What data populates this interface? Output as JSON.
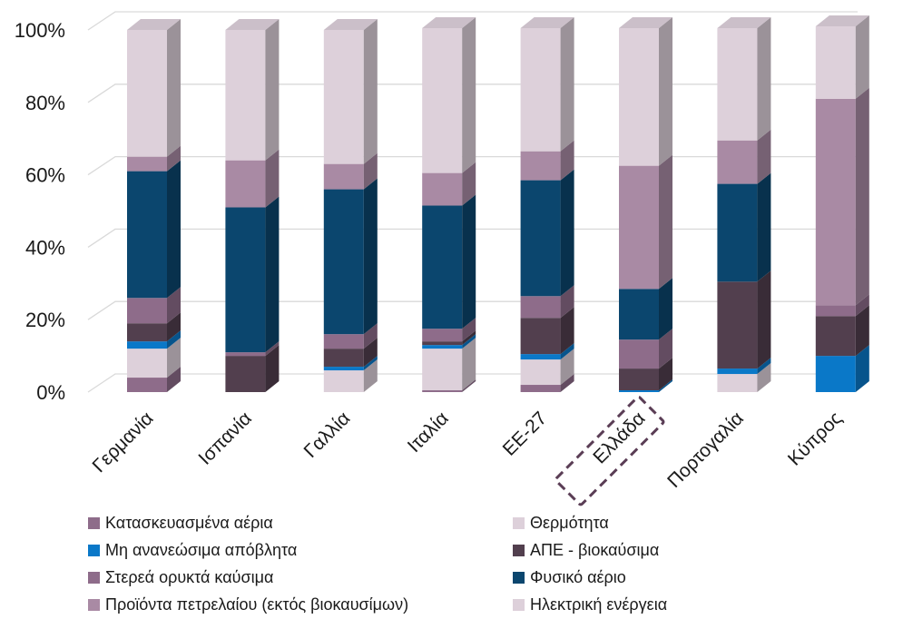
{
  "chart_data": {
    "type": "bar",
    "stacked": true,
    "percent": true,
    "style": "3d",
    "categories": [
      "Γερμανία",
      "Ισπανία",
      "Γαλλία",
      "Ιταλία",
      "ΕΕ-27",
      "Ελλάδα",
      "Πορτογαλία",
      "Κύπρος"
    ],
    "highlighted_category": "Ελλάδα",
    "yticks": [
      "0%",
      "20%",
      "40%",
      "60%",
      "80%",
      "100%"
    ],
    "ylim": [
      0,
      100
    ],
    "grid": true,
    "legend_position": "bottom",
    "series": [
      {
        "name": "Κατασκευασμένα αέρια",
        "color": "#8e6c8a",
        "values": [
          4,
          0,
          0,
          0.5,
          2,
          0,
          0,
          0
        ]
      },
      {
        "name": "Θερμότητα",
        "color": "#ddd0da",
        "values": [
          8,
          0,
          6,
          11.5,
          7,
          0,
          5,
          0
        ]
      },
      {
        "name": "Μη ανανεώσιμα απόβλητα",
        "color": "#0a78c8",
        "values": [
          2,
          0,
          1,
          1,
          1.5,
          0.5,
          1.5,
          10
        ]
      },
      {
        "name": "ΑΠΕ - βιοκαύσιμα",
        "color": "#523f4e",
        "values": [
          5,
          10,
          5,
          1,
          10,
          6,
          24,
          11
        ]
      },
      {
        "name": "Στερεά ορυκτά καύσιμα",
        "color": "#8e6c8a",
        "values": [
          7,
          1,
          4,
          3.5,
          6,
          8,
          0,
          3
        ]
      },
      {
        "name": "Φυσικό αέριο",
        "color": "#0b466e",
        "values": [
          35,
          40,
          40,
          34,
          32,
          14,
          27,
          0
        ]
      },
      {
        "name": "Προϊόντα πετρελαίου (εκτός βιοκαυσίμων)",
        "color": "#a98aa4",
        "values": [
          4,
          13,
          7,
          9,
          8,
          34,
          12,
          57
        ]
      },
      {
        "name": "Ηλεκτρική ενέργεια",
        "color": "#ddd0da",
        "values": [
          35,
          36,
          37,
          40,
          34,
          38,
          31,
          20
        ]
      }
    ]
  }
}
